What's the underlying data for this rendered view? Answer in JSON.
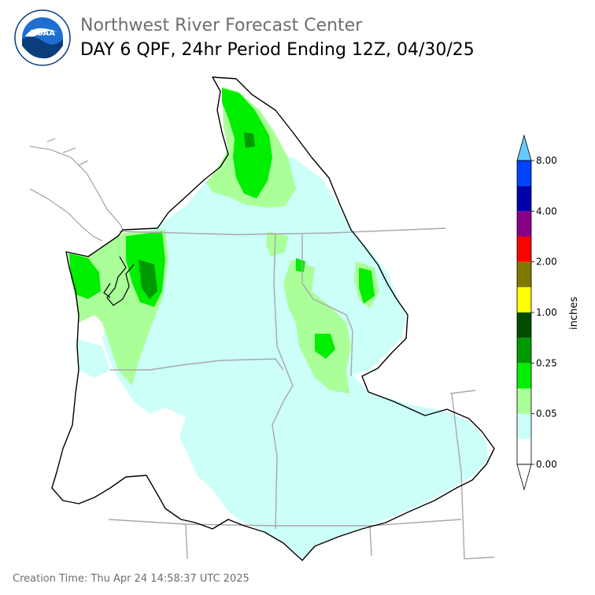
{
  "header": {
    "agency_title": "Northwest River Forecast Center",
    "product_title": "DAY 6 QPF, 24hr Period Ending 12Z, 04/30/25"
  },
  "logo": {
    "center_text": "NOAA",
    "ring_text": "NATIONAL OCEANIC AND ATMOSPHERIC ADMINISTRATION · U.S. DEPARTMENT OF COMMERCE"
  },
  "legend": {
    "unit_label": "inches",
    "ticks": [
      "0.00",
      "0.05",
      "0.25",
      "1.00",
      "2.00",
      "4.00",
      "8.00"
    ],
    "bins": [
      {
        "color": "#ffffff"
      },
      {
        "color": "#ccfff8"
      },
      {
        "color": "#aaff99"
      },
      {
        "color": "#00ee00"
      },
      {
        "color": "#009900"
      },
      {
        "color": "#004d00"
      },
      {
        "color": "#ffff00"
      },
      {
        "color": "#807800"
      },
      {
        "color": "#ff0000"
      },
      {
        "color": "#880088"
      },
      {
        "color": "#0000aa"
      },
      {
        "color": "#0044ff"
      },
      {
        "color": "#66ccff"
      }
    ]
  },
  "footer": {
    "creation_time": "Creation Time: Thu Apr 24 14:58:37 UTC 2025"
  }
}
